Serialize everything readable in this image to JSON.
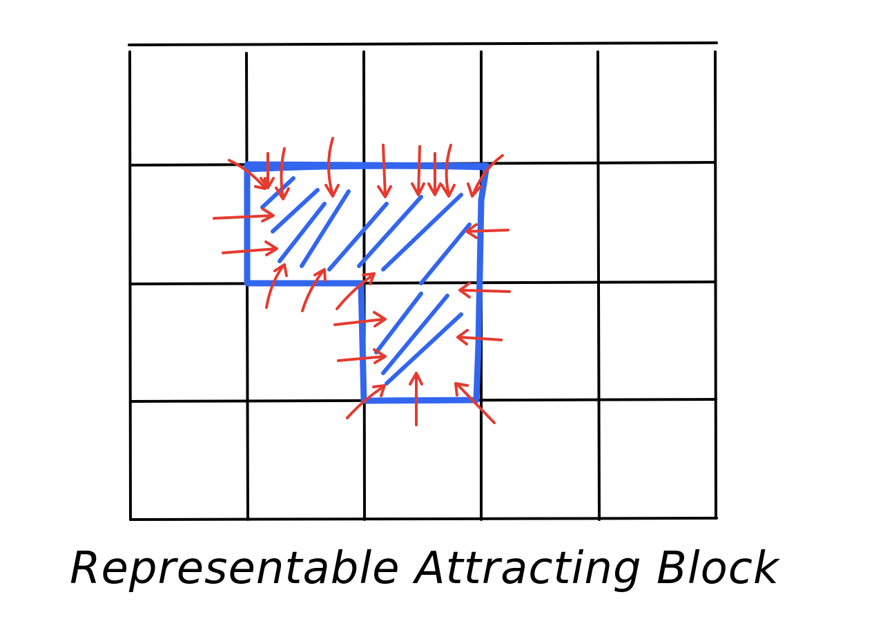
{
  "diagram": {
    "caption": "Representable Attracting Block",
    "grid": {
      "columns": 5,
      "rows": 4
    },
    "block": {
      "cells": [
        [
          1,
          1
        ],
        [
          2,
          1
        ],
        [
          2,
          2
        ]
      ],
      "shading": "diagonal hatching",
      "arrows": "pointing inward across the boundary"
    },
    "colors": {
      "grid": "#000000",
      "block": "#3366ee",
      "arrows": "#e53a2f",
      "background": "#ffffff"
    }
  }
}
